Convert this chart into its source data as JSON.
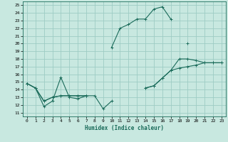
{
  "title": "",
  "xlabel": "Humidex (Indice chaleur)",
  "ylabel": "",
  "bg_color": "#c8e8e0",
  "grid_color": "#9eccc4",
  "line_color": "#1a6b5a",
  "xlim": [
    -0.5,
    23.5
  ],
  "ylim": [
    10.5,
    25.5
  ],
  "xticks": [
    0,
    1,
    2,
    3,
    4,
    5,
    6,
    7,
    8,
    9,
    10,
    11,
    12,
    13,
    14,
    15,
    16,
    17,
    18,
    19,
    20,
    21,
    22,
    23
  ],
  "yticks": [
    11,
    12,
    13,
    14,
    15,
    16,
    17,
    18,
    19,
    20,
    21,
    22,
    23,
    24,
    25
  ],
  "series": [
    [
      14.8,
      14.2,
      11.8,
      12.5,
      15.6,
      13.0,
      12.8,
      13.2,
      13.2,
      11.5,
      12.5,
      null,
      null,
      null,
      null,
      null,
      null,
      null,
      null,
      null,
      null,
      null,
      null,
      null
    ],
    [
      14.8,
      null,
      null,
      null,
      null,
      null,
      null,
      null,
      null,
      null,
      19.5,
      22.0,
      22.5,
      23.2,
      23.2,
      24.5,
      24.8,
      23.2,
      null,
      20.0,
      null,
      null,
      null,
      null
    ],
    [
      14.8,
      14.2,
      12.5,
      13.0,
      13.2,
      13.2,
      13.2,
      13.2,
      null,
      null,
      null,
      null,
      null,
      null,
      14.2,
      14.5,
      15.5,
      16.5,
      18.0,
      18.0,
      17.8,
      17.5,
      17.5,
      17.5
    ],
    [
      14.8,
      14.2,
      12.5,
      13.0,
      13.2,
      13.2,
      13.2,
      13.2,
      null,
      null,
      null,
      null,
      null,
      null,
      14.2,
      14.5,
      15.5,
      16.5,
      16.8,
      17.0,
      17.2,
      17.5,
      17.5,
      17.5
    ]
  ]
}
